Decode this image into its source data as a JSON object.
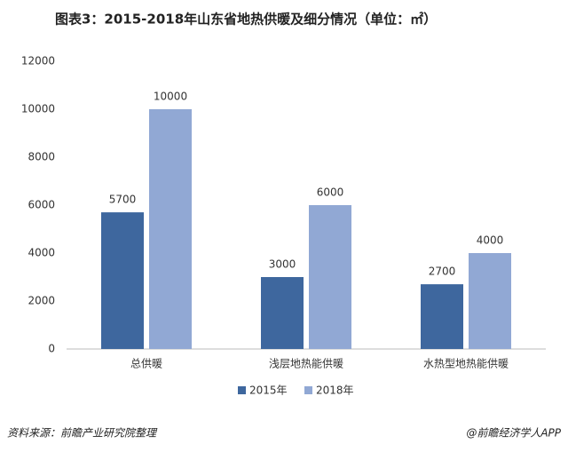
{
  "chart_data": {
    "type": "bar",
    "title": "图表3：2015-2018年山东省地热供暖及细分情况（单位：㎡）",
    "categories": [
      "总供暖",
      "浅层地热能供暖",
      "水热型地热能供暖"
    ],
    "series": [
      {
        "name": "2015年",
        "color": "#3e679e",
        "values": [
          5700,
          3000,
          2700
        ]
      },
      {
        "name": "2018年",
        "color": "#91a8d4",
        "values": [
          10000,
          6000,
          4000
        ]
      }
    ],
    "ylim": [
      0,
      12000
    ],
    "yticks": [
      0,
      2000,
      4000,
      6000,
      8000,
      10000,
      12000
    ],
    "grid": false,
    "legend": "bottom",
    "source": "资料来源：前瞻产业研究院整理",
    "credit": "@前瞻经济学人APP"
  }
}
